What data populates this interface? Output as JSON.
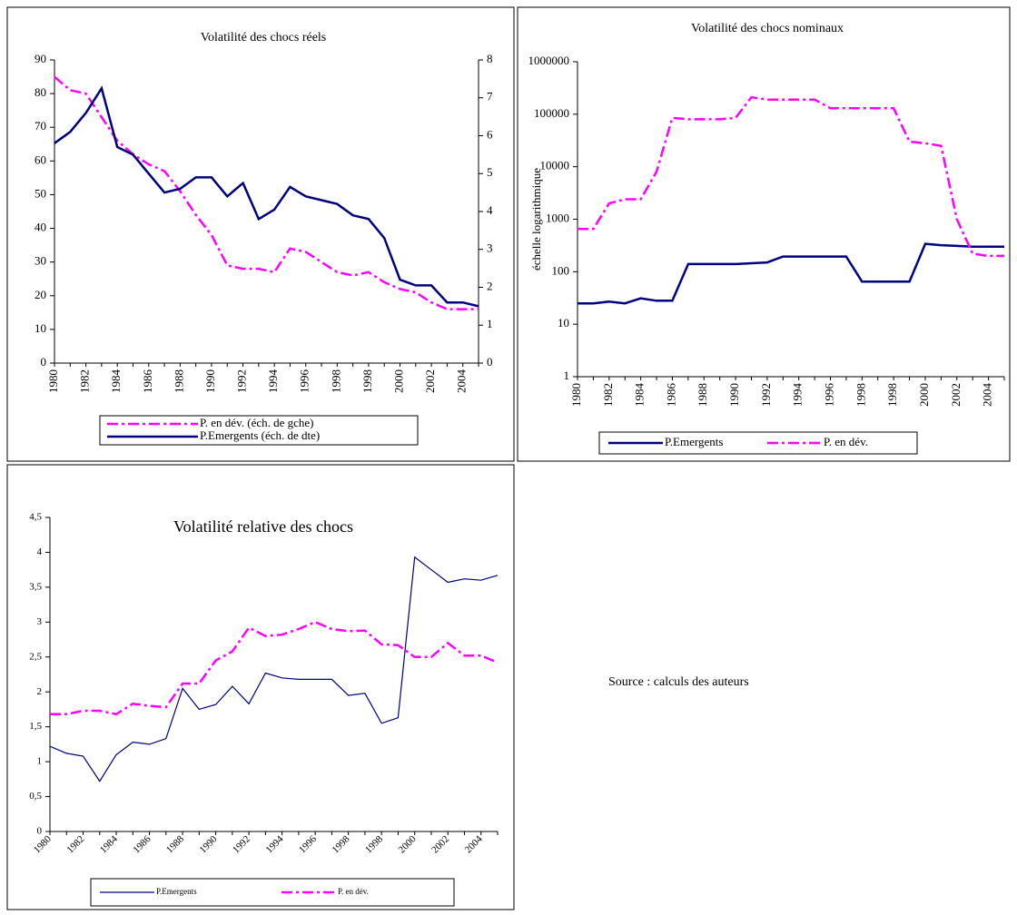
{
  "chart_data": [
    {
      "type": "line",
      "title": "Volatilité des chocs réels",
      "categories": [
        "1980",
        null,
        "1982",
        null,
        "1984",
        null,
        "1986",
        null,
        "1988",
        null,
        "1990",
        null,
        "1992",
        null,
        "1994",
        null,
        "1996",
        null,
        "1998",
        null,
        "1998",
        null,
        "2000",
        null,
        "2002",
        null,
        "2004",
        null
      ],
      "series": [
        {
          "name": "P. en dév. (éch. de gche)",
          "color": "#ff00ff",
          "line_style": "dashdot",
          "axis": "y",
          "values": [
            85,
            81,
            80,
            73,
            66,
            62,
            59,
            57,
            51,
            44,
            38,
            29,
            28,
            28,
            27,
            34,
            33,
            30,
            27,
            26,
            27,
            24,
            22,
            21,
            18,
            16,
            16,
            16
          ]
        },
        {
          "name": "P.Emergents (éch. de dte)",
          "color": "#000080",
          "line_style": "solid",
          "axis": "y2",
          "values": [
            5.8,
            6.1,
            6.6,
            7.25,
            5.7,
            5.5,
            5.0,
            4.5,
            4.6,
            4.9,
            4.9,
            4.4,
            4.75,
            3.8,
            4.05,
            4.65,
            4.4,
            4.3,
            4.2,
            3.9,
            3.8,
            3.3,
            2.2,
            2.05,
            2.05,
            1.6,
            1.6,
            1.5
          ]
        }
      ],
      "ylim": [
        0,
        90
      ],
      "yticks": [
        0,
        10,
        20,
        30,
        40,
        50,
        60,
        70,
        80,
        90
      ],
      "y2lim": [
        0,
        8
      ],
      "y2ticks": [
        0,
        1,
        2,
        3,
        4,
        5,
        6,
        7,
        8
      ],
      "legend": "bottom"
    },
    {
      "type": "line",
      "title": "Volatilité des chocs nominaux",
      "ylabel": "échelle logarithmique",
      "categories": [
        "1980",
        null,
        "1982",
        null,
        "1984",
        null,
        "1986",
        null,
        "1988",
        null,
        "1990",
        null,
        "1992",
        null,
        "1994",
        null,
        "1996",
        null,
        "1998",
        null,
        "1998",
        null,
        "2000",
        null,
        "2002",
        null,
        "2004",
        null
      ],
      "series": [
        {
          "name": "P.Emergents",
          "color": "#000080",
          "line_style": "solid",
          "values": [
            25,
            25,
            27,
            25,
            31,
            28,
            28,
            140,
            140,
            140,
            140,
            145,
            150,
            195,
            195,
            195,
            195,
            195,
            65,
            65,
            65,
            65,
            340,
            320,
            310,
            300,
            300,
            300
          ]
        },
        {
          "name": "P. en dév.",
          "color": "#ff00ff",
          "line_style": "dashdot",
          "values": [
            650,
            650,
            2000,
            2400,
            2400,
            8000,
            85000,
            80000,
            80000,
            80000,
            85000,
            210000,
            190000,
            190000,
            190000,
            190000,
            130000,
            130000,
            130000,
            130000,
            130000,
            30000,
            28000,
            25000,
            1000,
            220,
            200,
            200
          ]
        }
      ],
      "log_scale": true,
      "ylim": [
        1,
        1000000
      ],
      "yticks": [
        1,
        10,
        100,
        1000,
        10000,
        100000,
        1000000
      ],
      "legend": "bottom"
    },
    {
      "type": "line",
      "title": "Volatilité relative des chocs",
      "categories": [
        "1980",
        null,
        "1982",
        null,
        "1984",
        null,
        "1986",
        null,
        "1988",
        null,
        "1990",
        null,
        "1992",
        null,
        "1994",
        null,
        "1996",
        null,
        "1998",
        null,
        "1998",
        null,
        "2000",
        null,
        "2002",
        null,
        "2004",
        null
      ],
      "series": [
        {
          "name": "P.Emergents",
          "color": "#000080",
          "line_style": "solid",
          "values": [
            1.22,
            1.12,
            1.08,
            0.72,
            1.1,
            1.28,
            1.25,
            1.33,
            2.05,
            1.75,
            1.82,
            2.08,
            1.83,
            2.27,
            2.2,
            2.18,
            2.18,
            2.18,
            1.95,
            1.98,
            1.55,
            1.63,
            3.93,
            3.75,
            3.57,
            3.62,
            3.6,
            3.67
          ]
        },
        {
          "name": "P. en dév.",
          "color": "#ff00ff",
          "line_style": "dashdot",
          "values": [
            1.68,
            1.68,
            1.73,
            1.73,
            1.68,
            1.83,
            1.8,
            1.78,
            2.12,
            2.12,
            2.45,
            2.58,
            2.92,
            2.8,
            2.82,
            2.9,
            3.0,
            2.9,
            2.87,
            2.88,
            2.68,
            2.67,
            2.5,
            2.5,
            2.7,
            2.52,
            2.52,
            2.42
          ]
        }
      ],
      "ylim": [
        0,
        4.5
      ],
      "yticks": [
        0,
        {
          "value": 0.5,
          "label": "0,5"
        },
        1,
        {
          "value": 1.5,
          "label": "1,5"
        },
        2,
        {
          "value": 2.5,
          "label": "2,5"
        },
        3,
        {
          "value": 3.5,
          "label": "3,5"
        },
        4,
        {
          "value": 4.5,
          "label": "4,5"
        }
      ],
      "legend": "bottom"
    }
  ],
  "note": "Source : calculs des auteurs"
}
